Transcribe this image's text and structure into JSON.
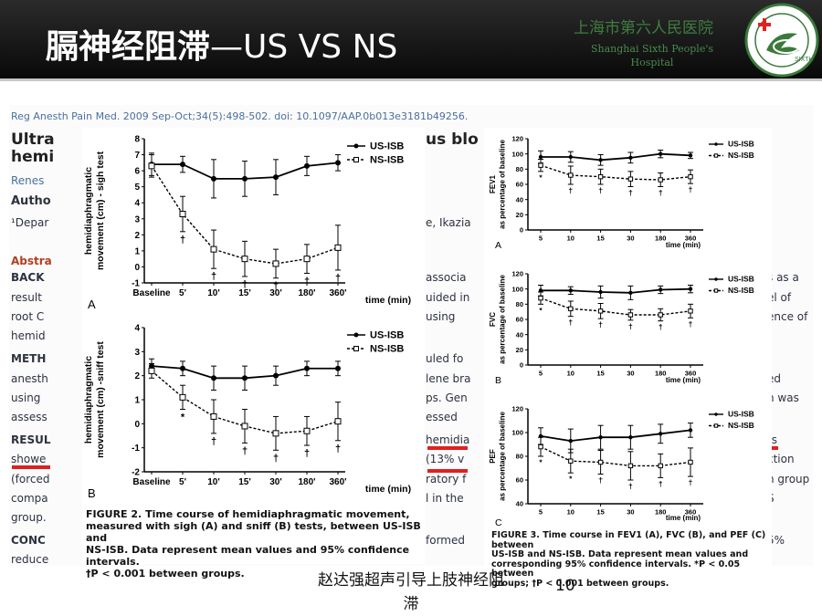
{
  "header": {
    "title_zh": "膈神经阻滞",
    "title_rest": "—US VS NS",
    "hospital_zh": "上海市第六人民医院",
    "hospital_en": "Shanghai Sixth People's Hospital"
  },
  "paper_bg": {
    "citation": "Reg Anesth Pain Med. 2009 Sep-Oct;34(5):498-502. doi: 10.1097/AAP.0b013e3181b49256.",
    "title_l1": "Ultra",
    "title_l2": "hemi",
    "title_r": "us blo",
    "authors_l": "Renes",
    "author_label": "Autho",
    "dept": "¹Depar",
    "dept_r": "e, Ikazia",
    "abstract": "Abstra",
    "lines_left": [
      "BACK",
      "result",
      "root C",
      "hemid",
      "METH",
      "anesth",
      "using",
      "assess",
      "RESUL",
      "showe",
      "(forced",
      "compa",
      "group.",
      "CONC",
      "reduce"
    ],
    "lines_mid": [
      "associa",
      "uided in",
      "using",
      "uled fo",
      "lene bra",
      "ps. Gen",
      "essed",
      "hemidia",
      "(13% v",
      "ratory f",
      "l in the",
      "formed"
    ],
    "lines_right": [
      "s as a",
      "el of",
      "ence of",
      "ed",
      "n was",
      "ts",
      "ction",
      "n group",
      "S",
      "5%"
    ]
  },
  "fig2": {
    "caption_label": "FIGURE 2.",
    "caption": "Time course of hemidiaphragmatic movement, measured with sigh (A) and sniff (B) tests, between US-ISB and NS-ISB. Data represent mean values and 95% confidence intervals. †P < 0.001 between groups.",
    "caption_lines": [
      "Time course of hemidiaphragmatic movement,",
      "measured with sigh (A) and sniff (B) tests, between US-ISB and",
      "NS-ISB. Data represent mean values and 95% confidence intervals.",
      "†P < 0.001 between groups."
    ]
  },
  "fig3": {
    "caption_label": "FIGURE 3.",
    "caption_lines": [
      "Time course in FEV1 (A), FVC (B), and PEF (C) between",
      "US-ISB and NS-ISB. Data represent mean values and",
      "corresponding 95% confidence intervals. *P < 0.05 between",
      "groups; †P < 0.001 between groups."
    ]
  },
  "footer": {
    "caption_l1": "赵达强超声引导上肢神经阻",
    "caption_l2": "滞",
    "page": "10"
  },
  "colors": {
    "accent_red": "#e02020",
    "hospital_green": "#3f7d3f",
    "header_bg": "#1a1a1a"
  },
  "chart_data": [
    {
      "type": "line",
      "panel": "A",
      "categories": [
        "Baseline",
        "5'",
        "10'",
        "15'",
        "30'",
        "180'",
        "360'"
      ],
      "ylabel": "hemidiaphragmatic movement (cm) - sigh test",
      "xlabel": "time (min)",
      "ylim": [
        -1,
        8
      ],
      "yticks": [
        -1,
        0,
        1,
        2,
        3,
        4,
        5,
        6,
        7,
        8
      ],
      "series": [
        {
          "name": "US-ISB",
          "values": [
            6.4,
            6.4,
            5.5,
            5.5,
            5.6,
            6.3,
            6.5
          ],
          "err": [
            0.7,
            0.5,
            1.2,
            1.1,
            1.1,
            0.6,
            0.5
          ],
          "marker": "filled",
          "style": "solid"
        },
        {
          "name": "NS-ISB",
          "values": [
            6.3,
            3.3,
            1.1,
            0.5,
            0.2,
            0.5,
            1.2
          ],
          "err": [
            0.7,
            1.1,
            1.2,
            1.1,
            0.9,
            0.9,
            1.4
          ],
          "marker": "open",
          "style": "dashed",
          "sig": [
            "",
            "†",
            "†",
            "†",
            "†",
            "†",
            "†"
          ]
        }
      ]
    },
    {
      "type": "line",
      "panel": "B",
      "categories": [
        "Baseline",
        "5'",
        "10'",
        "15'",
        "30'",
        "180'",
        "360'"
      ],
      "ylabel": "hemidiaphragmatic movement (cm) -sniff test",
      "xlabel": "time (min)",
      "ylim": [
        -2,
        4
      ],
      "yticks": [
        -2,
        -1,
        0,
        1,
        2,
        3,
        4
      ],
      "series": [
        {
          "name": "US-ISB",
          "values": [
            2.4,
            2.3,
            1.9,
            1.9,
            2.0,
            2.3,
            2.3
          ],
          "err": [
            0.3,
            0.3,
            0.5,
            0.5,
            0.4,
            0.3,
            0.3
          ],
          "marker": "filled",
          "style": "solid"
        },
        {
          "name": "NS-ISB",
          "values": [
            2.2,
            1.1,
            0.3,
            -0.1,
            -0.4,
            -0.3,
            0.1
          ],
          "err": [
            0.3,
            0.5,
            0.7,
            0.7,
            0.7,
            0.6,
            0.8
          ],
          "marker": "open",
          "style": "dashed",
          "sig": [
            "",
            "*",
            "†",
            "†",
            "†",
            "†",
            "†"
          ]
        }
      ]
    },
    {
      "type": "line",
      "panel": "A",
      "categories": [
        "5",
        "10",
        "15",
        "30",
        "180",
        "360"
      ],
      "ylabel": "FEV1 as percentage of baseline",
      "xlabel": "time (min)",
      "ylim": [
        0,
        120
      ],
      "yticks": [
        0,
        20,
        40,
        60,
        80,
        100,
        120
      ],
      "series": [
        {
          "name": "US-ISB",
          "values": [
            96,
            96,
            92,
            95,
            100,
            98
          ],
          "err": [
            8,
            7,
            7,
            7,
            5,
            4
          ],
          "marker": "filled",
          "style": "solid"
        },
        {
          "name": "NS-ISB",
          "values": [
            85,
            72,
            70,
            67,
            66,
            70
          ],
          "err": [
            8,
            12,
            10,
            10,
            9,
            9
          ],
          "marker": "open",
          "style": "dashed",
          "sig": [
            "*",
            "†",
            "†",
            "†",
            "†",
            "†"
          ]
        }
      ]
    },
    {
      "type": "line",
      "panel": "B",
      "categories": [
        "5",
        "10",
        "15",
        "30",
        "180",
        "360"
      ],
      "ylabel": "FVC as percentage of baseline",
      "xlabel": "time (min)",
      "ylim": [
        0,
        120
      ],
      "yticks": [
        0,
        20,
        40,
        60,
        80,
        100,
        120
      ],
      "series": [
        {
          "name": "US-ISB",
          "values": [
            98,
            98,
            96,
            95,
            99,
            100
          ],
          "err": [
            7,
            5,
            8,
            9,
            5,
            5
          ],
          "marker": "filled",
          "style": "solid"
        },
        {
          "name": "NS-ISB",
          "values": [
            88,
            74,
            71,
            66,
            66,
            71
          ],
          "err": [
            8,
            10,
            10,
            7,
            8,
            9
          ],
          "marker": "open",
          "style": "dashed",
          "sig": [
            "*",
            "†",
            "†",
            "†",
            "†",
            "†"
          ]
        }
      ]
    },
    {
      "type": "line",
      "panel": "C",
      "categories": [
        "5",
        "10",
        "15",
        "30",
        "180",
        "360"
      ],
      "ylabel": "PEF as percentage of baseline",
      "xlabel": "time (min)",
      "ylim": [
        40,
        120
      ],
      "yticks": [
        40,
        60,
        80,
        100,
        120
      ],
      "series": [
        {
          "name": "US-ISB",
          "values": [
            97,
            93,
            96,
            96,
            99,
            102
          ],
          "err": [
            7,
            10,
            10,
            10,
            8,
            6
          ],
          "marker": "filled",
          "style": "solid"
        },
        {
          "name": "NS-ISB",
          "values": [
            88,
            76,
            75,
            72,
            72,
            75
          ],
          "err": [
            8,
            10,
            10,
            12,
            10,
            12
          ],
          "marker": "open",
          "style": "dashed",
          "sig": [
            "*",
            "*",
            "†",
            "†",
            "†",
            "†"
          ]
        }
      ]
    }
  ]
}
